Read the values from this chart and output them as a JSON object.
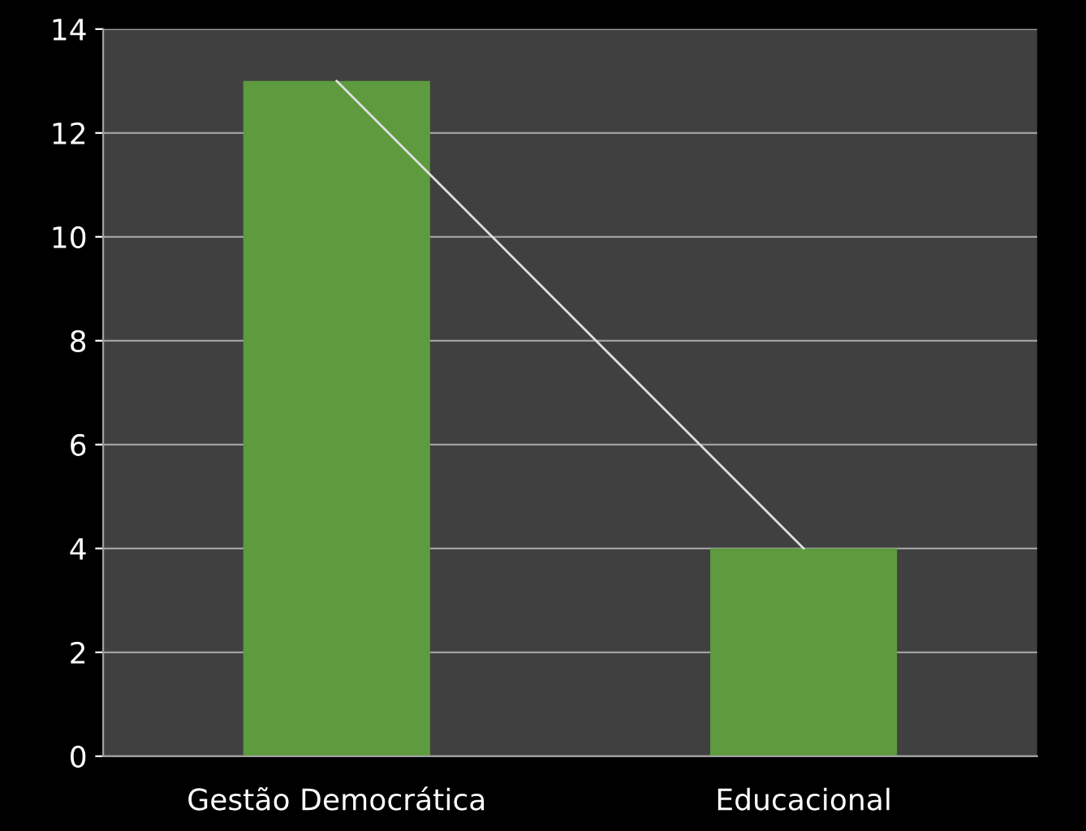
{
  "chart_data": {
    "type": "bar",
    "categories": [
      "Gestão Democrática",
      "Educacional"
    ],
    "series": [
      {
        "color": "#5e9a3e",
        "values": [
          13,
          4
        ]
      },
      {
        "type": "line",
        "color": "#e0e0e0",
        "values": [
          13,
          4
        ]
      }
    ],
    "ylim": [
      0,
      14
    ],
    "yticks": [
      0,
      2,
      4,
      6,
      8,
      10,
      12,
      14
    ],
    "grid": "y",
    "legend": false,
    "marker": "none"
  }
}
